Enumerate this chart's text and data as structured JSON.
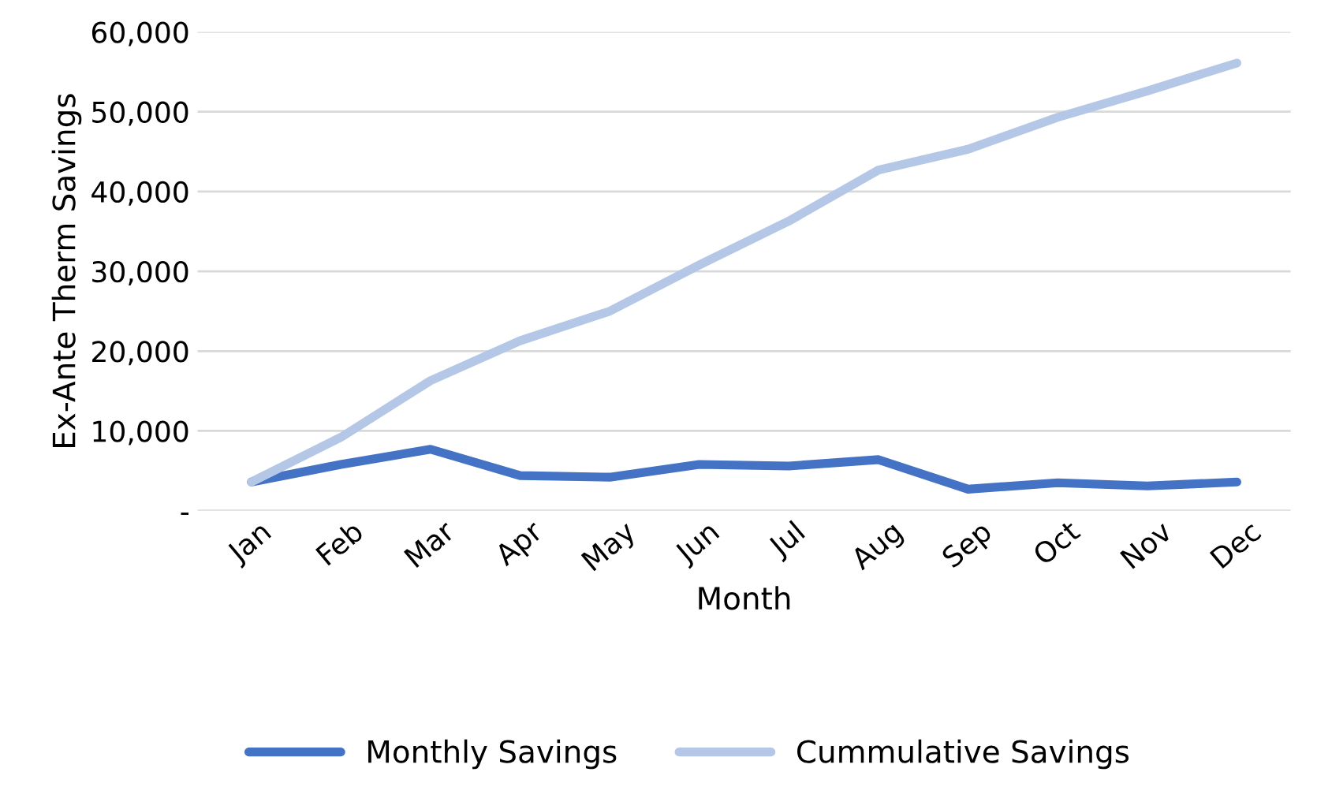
{
  "chart_data": {
    "type": "line",
    "xlabel": "Month",
    "ylabel": "Ex-Ante Therm Savings",
    "categories": [
      "Jan",
      "Feb",
      "Mar",
      "Apr",
      "May",
      "Jun",
      "Jul",
      "Aug",
      "Sep",
      "Oct",
      "Nov",
      "Dec"
    ],
    "series": [
      {
        "name": "Monthly Savings",
        "color": "#4472c4",
        "values": [
          3600,
          5800,
          7700,
          4400,
          4200,
          5800,
          5600,
          6400,
          2700,
          3500,
          3100,
          3600
        ]
      },
      {
        "name": "Cummulative Savings",
        "color": "#b4c7e7",
        "values": [
          3600,
          9200,
          16300,
          21300,
          25000,
          30800,
          36300,
          42700,
          45300,
          49300,
          52600,
          56100
        ]
      }
    ],
    "ylim": [
      0,
      60000
    ],
    "yticks": [
      {
        "value": 0,
        "label": "-"
      },
      {
        "value": 10000,
        "label": "10,000"
      },
      {
        "value": 20000,
        "label": "20,000"
      },
      {
        "value": 30000,
        "label": "30,000"
      },
      {
        "value": 40000,
        "label": "40,000"
      },
      {
        "value": 50000,
        "label": "50,000"
      },
      {
        "value": 60000,
        "label": "60,000"
      }
    ],
    "grid": "y",
    "legend": "bottom",
    "marker": "none",
    "line_style": "solid"
  }
}
